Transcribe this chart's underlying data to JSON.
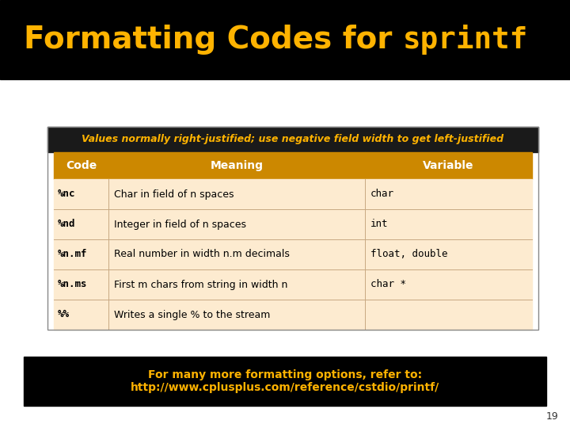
{
  "title_normal": "Formatting Codes for ",
  "title_code": "sprintf",
  "title_color": "#FFB300",
  "title_bg": "#000000",
  "subtitle": "Values normally right-justified; use negative field width to get left-justified",
  "subtitle_color": "#FFB300",
  "subtitle_bg": "#1a1a1a",
  "header_bg": "#CC8800",
  "header_color": "#FFFFFF",
  "row_bg": "#FDEBD0",
  "col_header": [
    "Code",
    "Meaning",
    "Variable"
  ],
  "rows": [
    [
      "%nc",
      "Char in field of n spaces",
      "char"
    ],
    [
      "%nd",
      "Integer in field of n spaces",
      "int"
    ],
    [
      "%n.mf",
      "Real number in width n.m decimals",
      "float, double"
    ],
    [
      "%n.ms",
      "First m chars from string in width n",
      "char *"
    ],
    [
      "%%",
      "Writes a single % to the stream",
      ""
    ]
  ],
  "footer_text": "For many more formatting options, refer to:\nhttp://www.cplusplus.com/reference/cstdio/printf/",
  "footer_color": "#FFB300",
  "footer_bg": "#000000",
  "page_bg": "#FFFFFF",
  "page_number": "19",
  "title_fontsize": 28,
  "code_fontsize": 27,
  "subtitle_fontsize": 9,
  "header_fontsize": 10,
  "row_fontsize": 9,
  "footer_fontsize": 10
}
